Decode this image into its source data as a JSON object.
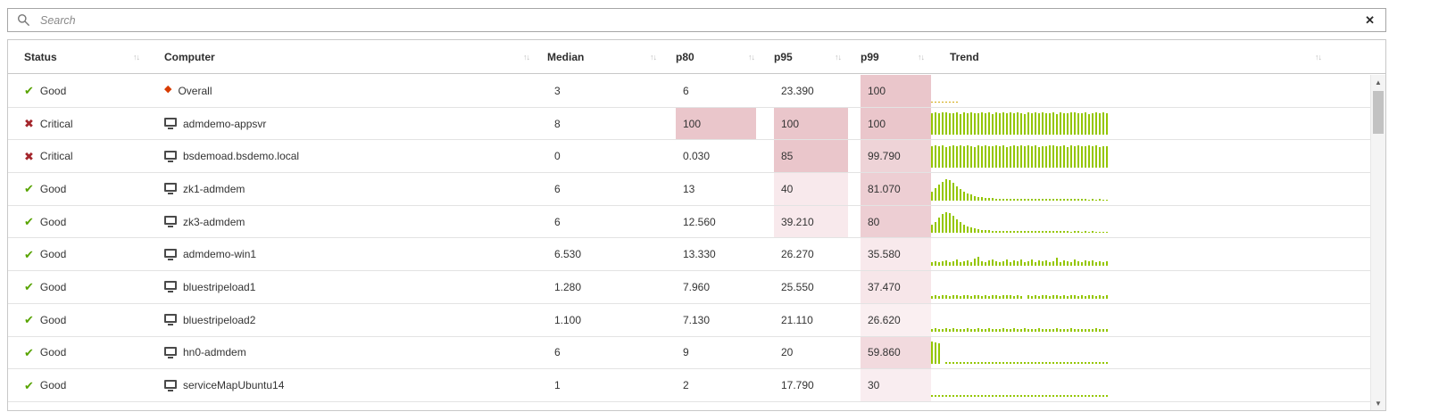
{
  "search": {
    "placeholder": "Search",
    "clear_glyph": "✕"
  },
  "colors": {
    "good": "#57a300",
    "critical": "#a4262c",
    "overall_diamond": "#d83b01",
    "bar": "#94c600",
    "overall_bar": "#d8a londs"
  },
  "icons": {
    "check": "✔",
    "critical": "✖",
    "diamond": "◆",
    "scroll_up": "▲",
    "scroll_down": "▼"
  },
  "table": {
    "sort_glyph": "↑↓",
    "columns": [
      {
        "key": "status",
        "label": "Status",
        "sortable": true
      },
      {
        "key": "computer",
        "label": "Computer",
        "sortable": true
      },
      {
        "key": "median",
        "label": "Median",
        "sortable": true
      },
      {
        "key": "p80",
        "label": "p80",
        "sortable": true
      },
      {
        "key": "p95",
        "label": "p95",
        "sortable": true
      },
      {
        "key": "p99",
        "label": "p99",
        "sortable": true
      },
      {
        "key": "trend",
        "label": "Trend",
        "sortable": true
      }
    ],
    "rows": [
      {
        "status": "Good",
        "status_icon": "check-icon",
        "computer": "Overall",
        "computer_icon": "diamond-icon",
        "median": {
          "value": "3",
          "bg": null
        },
        "p80": {
          "value": "6",
          "bg": null
        },
        "p95": {
          "value": "23.390",
          "bg": null
        },
        "p99": {
          "value": "100",
          "bg": "#eac6cb"
        },
        "trend_color": "#d2a80c",
        "trend": [
          4,
          3,
          3,
          2,
          2,
          2,
          1,
          1,
          0,
          0,
          0,
          0,
          0,
          0,
          0,
          0,
          0,
          0,
          0,
          0,
          0,
          0,
          0,
          0,
          0,
          0,
          0,
          0,
          0,
          0,
          0,
          0,
          0,
          0,
          0,
          0,
          0,
          0,
          0,
          0,
          0,
          0,
          0,
          0,
          0,
          0,
          0,
          0,
          0,
          0
        ]
      },
      {
        "status": "Critical",
        "status_icon": "critical-icon",
        "computer": "admdemo-appsvr",
        "computer_icon": "computer-icon",
        "median": {
          "value": "8",
          "bg": null
        },
        "p80": {
          "value": "100",
          "bg": "#eac6cb"
        },
        "p95": {
          "value": "100",
          "bg": "#eac6cb"
        },
        "p99": {
          "value": "100",
          "bg": "#eac6cb"
        },
        "trend_color": null,
        "trend": [
          93,
          96,
          91,
          95,
          97,
          92,
          94,
          96,
          90,
          95,
          93,
          97,
          91,
          94,
          96,
          92,
          95,
          90,
          96,
          93,
          97,
          91,
          95,
          92,
          96,
          94,
          90,
          95,
          93,
          96,
          91,
          97,
          94,
          92,
          95,
          90,
          96,
          93,
          91,
          95,
          97,
          92,
          94,
          96,
          90,
          93,
          95,
          91,
          96,
          94
        ]
      },
      {
        "status": "Critical",
        "status_icon": "critical-icon",
        "computer": "bsdemoad.bsdemo.local",
        "computer_icon": "computer-icon",
        "median": {
          "value": "0",
          "bg": null
        },
        "p80": {
          "value": "0.030",
          "bg": null
        },
        "p95": {
          "value": "85",
          "bg": "#eac6cb"
        },
        "p99": {
          "value": "99.790",
          "bg": "#eed3d7"
        },
        "trend_color": null,
        "trend": [
          91,
          95,
          93,
          96,
          90,
          94,
          97,
          92,
          95,
          91,
          96,
          93,
          90,
          95,
          92,
          97,
          94,
          91,
          96,
          93,
          95,
          90,
          94,
          96,
          92,
          95,
          91,
          97,
          93,
          96,
          90,
          94,
          92,
          95,
          96,
          91,
          93,
          97,
          90,
          95,
          92,
          96,
          94,
          91,
          95,
          93,
          96,
          90,
          94,
          92
        ]
      },
      {
        "status": "Good",
        "status_icon": "check-icon",
        "computer": "zk1-admdem",
        "computer_icon": "computer-icon",
        "median": {
          "value": "6",
          "bg": null
        },
        "p80": {
          "value": "13",
          "bg": null
        },
        "p95": {
          "value": "40",
          "bg": "#f8e9ec"
        },
        "p99": {
          "value": "81.070",
          "bg": "#edced3"
        },
        "trend_color": null,
        "trend": [
          38,
          52,
          68,
          82,
          92,
          88,
          76,
          62,
          50,
          40,
          32,
          26,
          21,
          17,
          14,
          12,
          11,
          10,
          9,
          9,
          8,
          8,
          9,
          8,
          7,
          8,
          7,
          8,
          7,
          7,
          8,
          7,
          7,
          6,
          7,
          7,
          6,
          7,
          6,
          6,
          7,
          6,
          6,
          6,
          5,
          6,
          5,
          6,
          5,
          5
        ]
      },
      {
        "status": "Good",
        "status_icon": "check-icon",
        "computer": "zk3-admdem",
        "computer_icon": "computer-icon",
        "median": {
          "value": "6",
          "bg": null
        },
        "p80": {
          "value": "12.560",
          "bg": null
        },
        "p95": {
          "value": "39.210",
          "bg": "#f8e9ec"
        },
        "p99": {
          "value": "80",
          "bg": "#edced3"
        },
        "trend_color": null,
        "trend": [
          34,
          48,
          65,
          80,
          90,
          85,
          72,
          58,
          46,
          36,
          28,
          22,
          18,
          15,
          13,
          11,
          10,
          9,
          9,
          8,
          8,
          7,
          8,
          7,
          8,
          7,
          7,
          6,
          7,
          7,
          6,
          7,
          6,
          7,
          6,
          6,
          7,
          6,
          6,
          5,
          6,
          6,
          5,
          6,
          5,
          6,
          5,
          5,
          5,
          4
        ]
      },
      {
        "status": "Good",
        "status_icon": "check-icon",
        "computer": "admdemo-win1",
        "computer_icon": "computer-icon",
        "median": {
          "value": "6.530",
          "bg": null
        },
        "p80": {
          "value": "13.330",
          "bg": null
        },
        "p95": {
          "value": "26.270",
          "bg": null
        },
        "p99": {
          "value": "35.580",
          "bg": "#f8e9ec"
        },
        "trend_color": null,
        "trend": [
          16,
          20,
          14,
          18,
          24,
          16,
          21,
          26,
          15,
          19,
          23,
          17,
          32,
          38,
          20,
          16,
          23,
          28,
          18,
          15,
          21,
          25,
          17,
          22,
          19,
          26,
          15,
          20,
          28,
          17,
          22,
          19,
          24,
          15,
          20,
          33,
          17,
          22,
          19,
          15,
          26,
          21,
          17,
          22,
          19,
          24,
          15,
          20,
          17,
          18
        ]
      },
      {
        "status": "Good",
        "status_icon": "check-icon",
        "computer": "bluestripeload1",
        "computer_icon": "computer-icon",
        "median": {
          "value": "1.280",
          "bg": null
        },
        "p80": {
          "value": "7.960",
          "bg": null
        },
        "p95": {
          "value": "25.550",
          "bg": null
        },
        "p99": {
          "value": "37.470",
          "bg": "#f7e6e9"
        },
        "trend_color": null,
        "trend": [
          13,
          16,
          12,
          15,
          17,
          13,
          15,
          14,
          12,
          15,
          16,
          13,
          14,
          17,
          12,
          15,
          13,
          16,
          14,
          12,
          15,
          14,
          16,
          13,
          15,
          12,
          0,
          14,
          13,
          15,
          12,
          14,
          16,
          13,
          15,
          14,
          12,
          16,
          13,
          15,
          14,
          12,
          15,
          13,
          16,
          14,
          12,
          15,
          13,
          14
        ]
      },
      {
        "status": "Good",
        "status_icon": "check-icon",
        "computer": "bluestripeload2",
        "computer_icon": "computer-icon",
        "median": {
          "value": "1.100",
          "bg": null
        },
        "p80": {
          "value": "7.130",
          "bg": null
        },
        "p95": {
          "value": "21.110",
          "bg": null
        },
        "p99": {
          "value": "26.620",
          "bg": "#faeff1"
        },
        "trend_color": null,
        "trend": [
          12,
          14,
          11,
          13,
          15,
          12,
          14,
          11,
          13,
          12,
          15,
          11,
          13,
          14,
          12,
          11,
          14,
          12,
          13,
          11,
          15,
          12,
          13,
          14,
          11,
          12,
          14,
          13,
          11,
          12,
          14,
          12,
          13,
          11,
          12,
          14,
          11,
          13,
          12,
          14,
          11,
          13,
          12,
          11,
          13,
          12,
          14,
          11,
          12,
          13
        ]
      },
      {
        "status": "Good",
        "status_icon": "check-icon",
        "computer": "hn0-admdem",
        "computer_icon": "computer-icon",
        "median": {
          "value": "6",
          "bg": null
        },
        "p80": {
          "value": "9",
          "bg": null
        },
        "p95": {
          "value": "20",
          "bg": null
        },
        "p99": {
          "value": "59.860",
          "bg": "#f2dade"
        },
        "trend_color": null,
        "trend": [
          95,
          92,
          90,
          0,
          8,
          9,
          8,
          7,
          8,
          9,
          8,
          7,
          8,
          8,
          7,
          8,
          7,
          8,
          7,
          7,
          8,
          7,
          8,
          7,
          7,
          8,
          7,
          7,
          8,
          7,
          7,
          7,
          8,
          7,
          7,
          7,
          7,
          8,
          7,
          7,
          7,
          7,
          7,
          7,
          8,
          7,
          7,
          7,
          7,
          7
        ]
      },
      {
        "status": "Good",
        "status_icon": "check-icon",
        "computer": "serviceMapUbuntu14",
        "computer_icon": "computer-icon",
        "median": {
          "value": "1",
          "bg": null
        },
        "p80": {
          "value": "2",
          "bg": null
        },
        "p95": {
          "value": "17.790",
          "bg": null
        },
        "p99": {
          "value": "30",
          "bg": "#f9edf0"
        },
        "trend_color": null,
        "trend": [
          8,
          8,
          7,
          8,
          8,
          7,
          8,
          7,
          8,
          8,
          7,
          8,
          8,
          7,
          8,
          8,
          7,
          8,
          7,
          8,
          8,
          7,
          8,
          8,
          7,
          8,
          8,
          7,
          8,
          7,
          8,
          8,
          7,
          8,
          8,
          7,
          8,
          8,
          7,
          8,
          7,
          8,
          8,
          7,
          8,
          8,
          7,
          8,
          8,
          7
        ]
      }
    ]
  }
}
